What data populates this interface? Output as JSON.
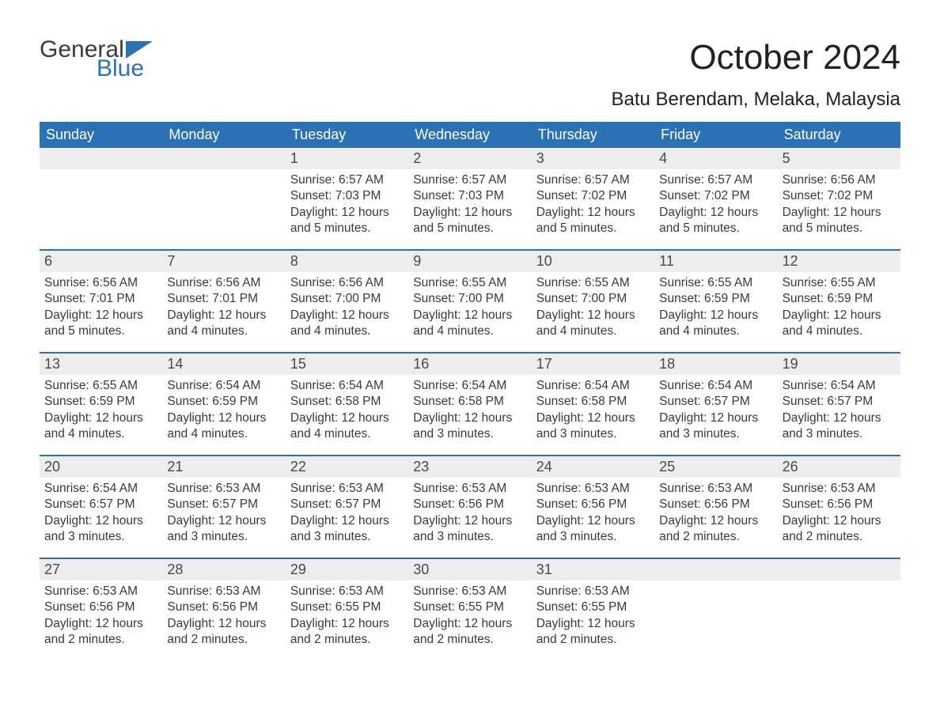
{
  "colors": {
    "header_bg": "#2a72b5",
    "header_text": "#ffffff",
    "daynum_bg": "#ededed",
    "body_text": "#3a3a3a",
    "row_divider": "#2a72b5",
    "logo_blue": "#2a72b5",
    "page_bg": "#ffffff"
  },
  "logo": {
    "word1": "General",
    "word2": "Blue"
  },
  "title": "October 2024",
  "location": "Batu Berendam, Melaka, Malaysia",
  "day_names": [
    "Sunday",
    "Monday",
    "Tuesday",
    "Wednesday",
    "Thursday",
    "Friday",
    "Saturday"
  ],
  "weeks": [
    [
      {
        "n": "",
        "sunrise": "",
        "sunset": "",
        "daylight": ""
      },
      {
        "n": "",
        "sunrise": "",
        "sunset": "",
        "daylight": ""
      },
      {
        "n": "1",
        "sunrise": "Sunrise: 6:57 AM",
        "sunset": "Sunset: 7:03 PM",
        "daylight": "Daylight: 12 hours and 5 minutes."
      },
      {
        "n": "2",
        "sunrise": "Sunrise: 6:57 AM",
        "sunset": "Sunset: 7:03 PM",
        "daylight": "Daylight: 12 hours and 5 minutes."
      },
      {
        "n": "3",
        "sunrise": "Sunrise: 6:57 AM",
        "sunset": "Sunset: 7:02 PM",
        "daylight": "Daylight: 12 hours and 5 minutes."
      },
      {
        "n": "4",
        "sunrise": "Sunrise: 6:57 AM",
        "sunset": "Sunset: 7:02 PM",
        "daylight": "Daylight: 12 hours and 5 minutes."
      },
      {
        "n": "5",
        "sunrise": "Sunrise: 6:56 AM",
        "sunset": "Sunset: 7:02 PM",
        "daylight": "Daylight: 12 hours and 5 minutes."
      }
    ],
    [
      {
        "n": "6",
        "sunrise": "Sunrise: 6:56 AM",
        "sunset": "Sunset: 7:01 PM",
        "daylight": "Daylight: 12 hours and 5 minutes."
      },
      {
        "n": "7",
        "sunrise": "Sunrise: 6:56 AM",
        "sunset": "Sunset: 7:01 PM",
        "daylight": "Daylight: 12 hours and 4 minutes."
      },
      {
        "n": "8",
        "sunrise": "Sunrise: 6:56 AM",
        "sunset": "Sunset: 7:00 PM",
        "daylight": "Daylight: 12 hours and 4 minutes."
      },
      {
        "n": "9",
        "sunrise": "Sunrise: 6:55 AM",
        "sunset": "Sunset: 7:00 PM",
        "daylight": "Daylight: 12 hours and 4 minutes."
      },
      {
        "n": "10",
        "sunrise": "Sunrise: 6:55 AM",
        "sunset": "Sunset: 7:00 PM",
        "daylight": "Daylight: 12 hours and 4 minutes."
      },
      {
        "n": "11",
        "sunrise": "Sunrise: 6:55 AM",
        "sunset": "Sunset: 6:59 PM",
        "daylight": "Daylight: 12 hours and 4 minutes."
      },
      {
        "n": "12",
        "sunrise": "Sunrise: 6:55 AM",
        "sunset": "Sunset: 6:59 PM",
        "daylight": "Daylight: 12 hours and 4 minutes."
      }
    ],
    [
      {
        "n": "13",
        "sunrise": "Sunrise: 6:55 AM",
        "sunset": "Sunset: 6:59 PM",
        "daylight": "Daylight: 12 hours and 4 minutes."
      },
      {
        "n": "14",
        "sunrise": "Sunrise: 6:54 AM",
        "sunset": "Sunset: 6:59 PM",
        "daylight": "Daylight: 12 hours and 4 minutes."
      },
      {
        "n": "15",
        "sunrise": "Sunrise: 6:54 AM",
        "sunset": "Sunset: 6:58 PM",
        "daylight": "Daylight: 12 hours and 4 minutes."
      },
      {
        "n": "16",
        "sunrise": "Sunrise: 6:54 AM",
        "sunset": "Sunset: 6:58 PM",
        "daylight": "Daylight: 12 hours and 3 minutes."
      },
      {
        "n": "17",
        "sunrise": "Sunrise: 6:54 AM",
        "sunset": "Sunset: 6:58 PM",
        "daylight": "Daylight: 12 hours and 3 minutes."
      },
      {
        "n": "18",
        "sunrise": "Sunrise: 6:54 AM",
        "sunset": "Sunset: 6:57 PM",
        "daylight": "Daylight: 12 hours and 3 minutes."
      },
      {
        "n": "19",
        "sunrise": "Sunrise: 6:54 AM",
        "sunset": "Sunset: 6:57 PM",
        "daylight": "Daylight: 12 hours and 3 minutes."
      }
    ],
    [
      {
        "n": "20",
        "sunrise": "Sunrise: 6:54 AM",
        "sunset": "Sunset: 6:57 PM",
        "daylight": "Daylight: 12 hours and 3 minutes."
      },
      {
        "n": "21",
        "sunrise": "Sunrise: 6:53 AM",
        "sunset": "Sunset: 6:57 PM",
        "daylight": "Daylight: 12 hours and 3 minutes."
      },
      {
        "n": "22",
        "sunrise": "Sunrise: 6:53 AM",
        "sunset": "Sunset: 6:57 PM",
        "daylight": "Daylight: 12 hours and 3 minutes."
      },
      {
        "n": "23",
        "sunrise": "Sunrise: 6:53 AM",
        "sunset": "Sunset: 6:56 PM",
        "daylight": "Daylight: 12 hours and 3 minutes."
      },
      {
        "n": "24",
        "sunrise": "Sunrise: 6:53 AM",
        "sunset": "Sunset: 6:56 PM",
        "daylight": "Daylight: 12 hours and 3 minutes."
      },
      {
        "n": "25",
        "sunrise": "Sunrise: 6:53 AM",
        "sunset": "Sunset: 6:56 PM",
        "daylight": "Daylight: 12 hours and 2 minutes."
      },
      {
        "n": "26",
        "sunrise": "Sunrise: 6:53 AM",
        "sunset": "Sunset: 6:56 PM",
        "daylight": "Daylight: 12 hours and 2 minutes."
      }
    ],
    [
      {
        "n": "27",
        "sunrise": "Sunrise: 6:53 AM",
        "sunset": "Sunset: 6:56 PM",
        "daylight": "Daylight: 12 hours and 2 minutes."
      },
      {
        "n": "28",
        "sunrise": "Sunrise: 6:53 AM",
        "sunset": "Sunset: 6:56 PM",
        "daylight": "Daylight: 12 hours and 2 minutes."
      },
      {
        "n": "29",
        "sunrise": "Sunrise: 6:53 AM",
        "sunset": "Sunset: 6:55 PM",
        "daylight": "Daylight: 12 hours and 2 minutes."
      },
      {
        "n": "30",
        "sunrise": "Sunrise: 6:53 AM",
        "sunset": "Sunset: 6:55 PM",
        "daylight": "Daylight: 12 hours and 2 minutes."
      },
      {
        "n": "31",
        "sunrise": "Sunrise: 6:53 AM",
        "sunset": "Sunset: 6:55 PM",
        "daylight": "Daylight: 12 hours and 2 minutes."
      },
      {
        "n": "",
        "sunrise": "",
        "sunset": "",
        "daylight": ""
      },
      {
        "n": "",
        "sunrise": "",
        "sunset": "",
        "daylight": ""
      }
    ]
  ]
}
